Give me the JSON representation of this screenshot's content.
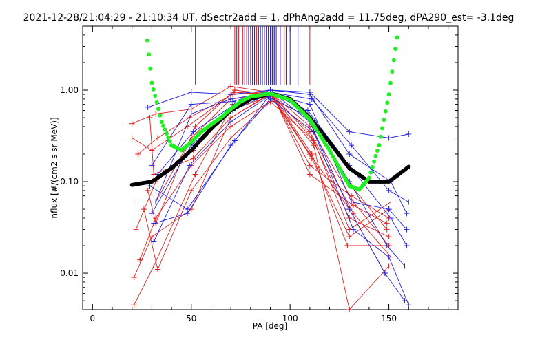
{
  "chart_data": {
    "type": "scatter",
    "title": "2021-12-28/21:04:29 - 21:10:34 UT, dSectr2add = 1, dPhAng2add = 11.75deg, dPA290_est=  -3.1deg",
    "xlabel": "PA [deg]",
    "ylabel": "nflux [#/(cm2 s sr MeV)]",
    "xlim": [
      -5,
      185
    ],
    "ylim": [
      0.004,
      5.0
    ],
    "yscale": "log",
    "x_ticks": [
      0,
      50,
      100,
      150
    ],
    "x_tick_labels": [
      "0",
      "50",
      "100",
      "150"
    ],
    "y_ticks": [
      0.01,
      0.1,
      1.0
    ],
    "y_tick_labels": [
      "0.01",
      "0.10",
      "1.00"
    ],
    "grid": false,
    "colors": {
      "red_series": "#e02020",
      "blue_series": "#2020e0",
      "green_fit": "#22ee22",
      "black_fit": "#000000",
      "axes": "#000000"
    },
    "series": [
      {
        "style": "red-traces",
        "traces": [
          [
            [
              20,
              0.43
            ],
            [
              32,
              0.55
            ],
            [
              50,
              0.62
            ],
            [
              70,
              1.1
            ],
            [
              90,
              0.95
            ],
            [
              110,
              0.4
            ],
            [
              132,
              0.06
            ],
            [
              150,
              0.02
            ]
          ],
          [
            [
              20,
              0.3
            ],
            [
              30,
              0.22
            ],
            [
              48,
              0.4
            ],
            [
              72,
              0.95
            ],
            [
              90,
              0.9
            ],
            [
              112,
              0.25
            ],
            [
              130,
              0.004
            ],
            [
              150,
              0.012
            ]
          ],
          [
            [
              21,
              0.009
            ],
            [
              30,
              0.025
            ],
            [
              50,
              0.05
            ],
            [
              70,
              0.5
            ],
            [
              90,
              0.92
            ],
            [
              110,
              0.2
            ],
            [
              130,
              0.05
            ],
            [
              148,
              0.01
            ]
          ],
          [
            [
              21,
              0.0045
            ],
            [
              31,
              0.012
            ],
            [
              52,
              0.12
            ],
            [
              71,
              0.7
            ],
            [
              90,
              0.88
            ],
            [
              110,
              0.35
            ],
            [
              132,
              0.045
            ],
            [
              151,
              0.015
            ]
          ],
          [
            [
              22,
              0.06
            ],
            [
              32,
              0.06
            ],
            [
              50,
              0.3
            ],
            [
              70,
              0.8
            ],
            [
              91,
              0.9
            ],
            [
              111,
              0.3
            ],
            [
              130,
              0.04
            ],
            [
              150,
              0.025
            ]
          ],
          [
            [
              22,
              0.03
            ],
            [
              32,
              0.1
            ],
            [
              51,
              0.22
            ],
            [
              70,
              0.6
            ],
            [
              89,
              0.85
            ],
            [
              110,
              0.5
            ],
            [
              131,
              0.09
            ],
            [
              149,
              0.03
            ]
          ],
          [
            [
              23,
              0.2
            ],
            [
              33,
              0.3
            ],
            [
              49,
              0.5
            ],
            [
              71,
              0.9
            ],
            [
              90,
              0.95
            ],
            [
              111,
              0.2
            ],
            [
              129,
              0.02
            ],
            [
              150,
              0.02
            ]
          ],
          [
            [
              24,
              0.014
            ],
            [
              32,
              0.04
            ],
            [
              50,
              0.15
            ],
            [
              70,
              0.4
            ],
            [
              92,
              0.8
            ],
            [
              110,
              0.15
            ],
            [
              131,
              0.07
            ],
            [
              150,
              0.04
            ]
          ],
          [
            [
              26,
              0.05
            ],
            [
              33,
              0.011
            ],
            [
              50,
              0.08
            ],
            [
              70,
              0.3
            ],
            [
              90,
              0.75
            ],
            [
              112,
              0.28
            ],
            [
              130,
              0.03
            ],
            [
              151,
              0.06
            ]
          ],
          [
            [
              28,
              0.08
            ],
            [
              32,
              0.035
            ],
            [
              52,
              0.4
            ],
            [
              72,
              1.0
            ],
            [
              91,
              0.9
            ],
            [
              110,
              0.12
            ],
            [
              132,
              0.055
            ],
            [
              149,
              0.035
            ]
          ],
          [
            [
              29,
              0.5
            ],
            [
              31,
              0.12
            ],
            [
              51,
              0.18
            ],
            [
              70,
              0.5
            ],
            [
              90,
              0.9
            ],
            [
              111,
              0.18
            ],
            [
              130,
              0.025
            ],
            [
              150,
              0.05
            ]
          ]
        ]
      },
      {
        "style": "blue-traces",
        "traces": [
          [
            [
              28,
              0.65
            ],
            [
              50,
              0.95
            ],
            [
              70,
              0.9
            ],
            [
              90,
              1.0
            ],
            [
              110,
              0.95
            ],
            [
              130,
              0.35
            ],
            [
              150,
              0.3
            ],
            [
              160,
              0.33
            ]
          ],
          [
            [
              29,
              0.09
            ],
            [
              48,
              0.05
            ],
            [
              72,
              0.28
            ],
            [
              90,
              0.9
            ],
            [
              110,
              0.7
            ],
            [
              131,
              0.06
            ],
            [
              150,
              0.05
            ],
            [
              159,
              0.03
            ]
          ],
          [
            [
              30,
              0.045
            ],
            [
              50,
              0.25
            ],
            [
              71,
              0.6
            ],
            [
              90,
              0.92
            ],
            [
              109,
              0.6
            ],
            [
              130,
              0.15
            ],
            [
              151,
              0.04
            ],
            [
              159,
              0.02
            ]
          ],
          [
            [
              31,
              0.022
            ],
            [
              49,
              0.15
            ],
            [
              70,
              0.45
            ],
            [
              89,
              0.85
            ],
            [
              110,
              0.5
            ],
            [
              130,
              0.1
            ],
            [
              149,
              0.02
            ],
            [
              158,
              0.012
            ]
          ],
          [
            [
              32,
              0.06
            ],
            [
              50,
              0.55
            ],
            [
              70,
              0.8
            ],
            [
              90,
              0.95
            ],
            [
              111,
              0.8
            ],
            [
              131,
              0.25
            ],
            [
              150,
              0.08
            ],
            [
              160,
              0.06
            ]
          ],
          [
            [
              33,
              0.12
            ],
            [
              51,
              0.35
            ],
            [
              72,
              0.7
            ],
            [
              91,
              0.95
            ],
            [
              110,
              0.45
            ],
            [
              130,
              0.05
            ],
            [
              148,
              0.01
            ],
            [
              158,
              0.005
            ]
          ],
          [
            [
              31,
              0.035
            ],
            [
              48,
              0.045
            ],
            [
              70,
              0.25
            ],
            [
              90,
              0.8
            ],
            [
              112,
              0.35
            ],
            [
              132,
              0.03
            ],
            [
              150,
              0.015
            ],
            [
              160,
              0.0045
            ]
          ],
          [
            [
              30,
              0.15
            ],
            [
              50,
              0.7
            ],
            [
              71,
              0.75
            ],
            [
              90,
              1.0
            ],
            [
              110,
              0.9
            ],
            [
              130,
              0.2
            ],
            [
              151,
              0.1
            ],
            [
              159,
              0.045
            ]
          ]
        ]
      },
      {
        "style": "black-fit",
        "name": "",
        "points": [
          [
            20,
            0.092
          ],
          [
            30,
            0.1
          ],
          [
            40,
            0.14
          ],
          [
            50,
            0.22
          ],
          [
            60,
            0.38
          ],
          [
            70,
            0.6
          ],
          [
            80,
            0.8
          ],
          [
            90,
            0.92
          ],
          [
            100,
            0.8
          ],
          [
            110,
            0.5
          ],
          [
            120,
            0.27
          ],
          [
            130,
            0.14
          ],
          [
            140,
            0.1
          ],
          [
            150,
            0.1
          ],
          [
            160,
            0.145
          ]
        ]
      },
      {
        "style": "green-fit",
        "name": "",
        "points": [
          [
            27,
            5.0
          ],
          [
            30,
            1.2
          ],
          [
            35,
            0.45
          ],
          [
            40,
            0.25
          ],
          [
            45,
            0.22
          ],
          [
            50,
            0.27
          ],
          [
            55,
            0.35
          ],
          [
            60,
            0.42
          ],
          [
            65,
            0.5
          ],
          [
            70,
            0.62
          ],
          [
            75,
            0.75
          ],
          [
            80,
            0.85
          ],
          [
            90,
            0.92
          ],
          [
            100,
            0.78
          ],
          [
            110,
            0.48
          ],
          [
            120,
            0.22
          ],
          [
            125,
            0.14
          ],
          [
            130,
            0.09
          ],
          [
            135,
            0.082
          ],
          [
            140,
            0.11
          ],
          [
            145,
            0.25
          ],
          [
            150,
            0.9
          ],
          [
            155,
            5.0
          ]
        ]
      }
    ],
    "top_markers": {
      "red": [
        52,
        72,
        74,
        76,
        78,
        79,
        80,
        81,
        82,
        83,
        84,
        86,
        87,
        88,
        89,
        91,
        92,
        95,
        97,
        110
      ],
      "blue": [
        73,
        77,
        79,
        81,
        82,
        84,
        85,
        86,
        87,
        88,
        89,
        90,
        91,
        92,
        93,
        95,
        98,
        100,
        104
      ]
    }
  }
}
